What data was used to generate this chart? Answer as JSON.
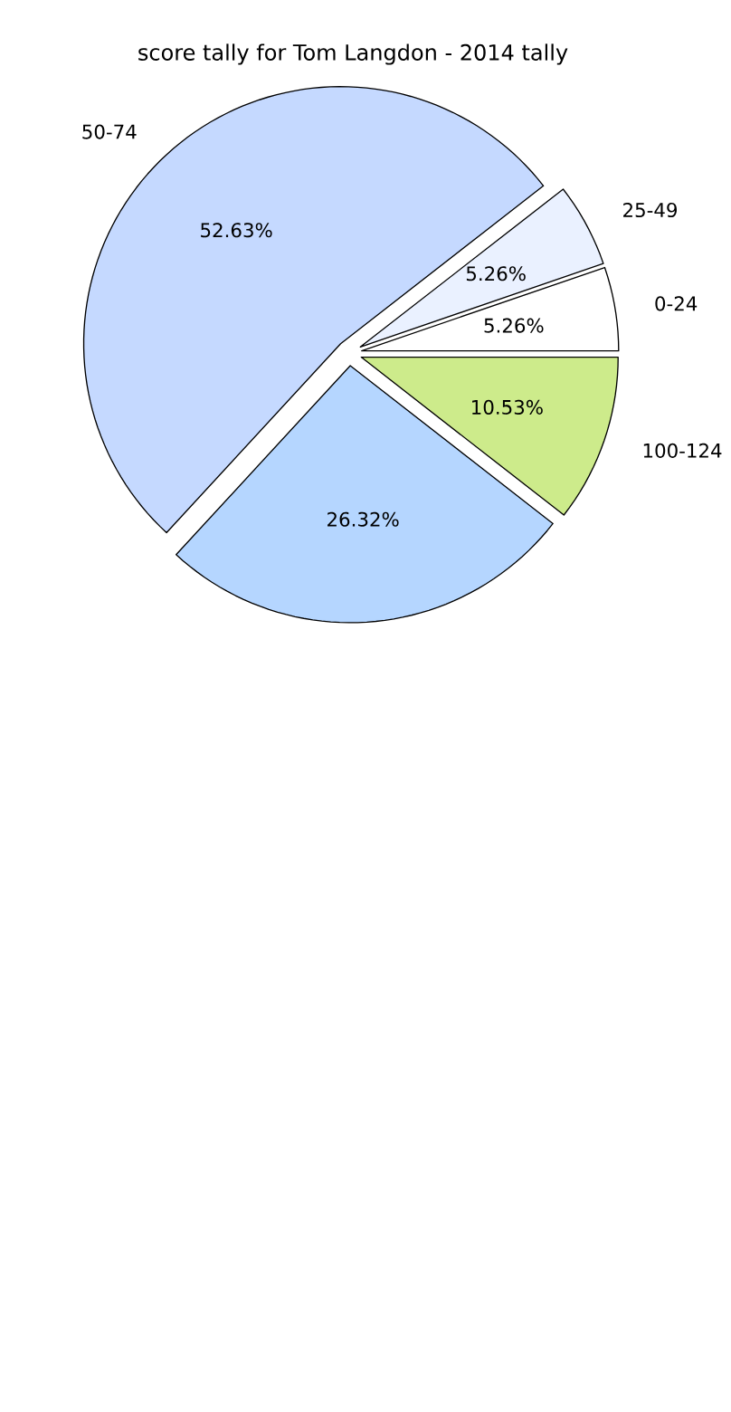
{
  "chart_data": {
    "type": "pie",
    "title": "score tally for Tom Langdon - 2014 tally",
    "categories": [
      "0-24",
      "25-49",
      "50-74",
      null,
      "100-124"
    ],
    "values": [
      5.26,
      5.26,
      52.63,
      26.32,
      10.53
    ],
    "colors": [
      "#ffffff",
      "#eaf1ff",
      "#c5d9ff",
      "#b5d6ff",
      "#cdeb8b"
    ],
    "value_labels": [
      "5.26%",
      "5.26%",
      "52.63%",
      "26.32%",
      "10.53%"
    ]
  }
}
